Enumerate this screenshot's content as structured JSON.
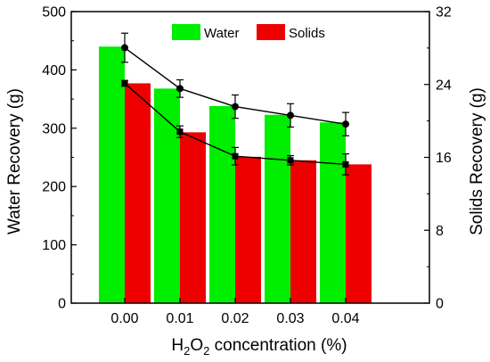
{
  "chart_data": {
    "type": "bar",
    "categories": [
      "0.00",
      "0.01",
      "0.02",
      "0.03",
      "0.04"
    ],
    "xlabel": {
      "prefix": "H",
      "sub1": "2",
      "mid": "O",
      "sub2": "2",
      "suffix": " concentration (%)"
    },
    "left_axis": {
      "label": "Water Recovery (g)",
      "ylim": [
        0,
        500
      ],
      "ticks": [
        "0",
        "100",
        "200",
        "300",
        "400",
        "500"
      ]
    },
    "right_axis": {
      "label": "Solids Recovery (g)",
      "ylim": [
        0,
        32
      ],
      "ticks": [
        "0",
        "8",
        "16",
        "24",
        "32"
      ]
    },
    "series": [
      {
        "name": "Water",
        "axis": "left",
        "color": "#00ee00",
        "bar_values": [
          440,
          368,
          338,
          323,
          310
        ],
        "line_values": [
          438,
          368,
          337,
          322,
          307
        ],
        "line_errors": [
          25,
          15,
          20,
          20,
          20
        ],
        "marker": "circle"
      },
      {
        "name": "Solids",
        "axis": "left",
        "color": "#ee0000",
        "bar_values": [
          377,
          293,
          251,
          245,
          238
        ],
        "line_values": [
          377,
          294,
          252,
          245,
          238
        ],
        "line_errors": [
          5,
          10,
          15,
          8,
          18
        ],
        "marker": "square"
      }
    ],
    "legend_position": "top-right",
    "grid": false
  }
}
